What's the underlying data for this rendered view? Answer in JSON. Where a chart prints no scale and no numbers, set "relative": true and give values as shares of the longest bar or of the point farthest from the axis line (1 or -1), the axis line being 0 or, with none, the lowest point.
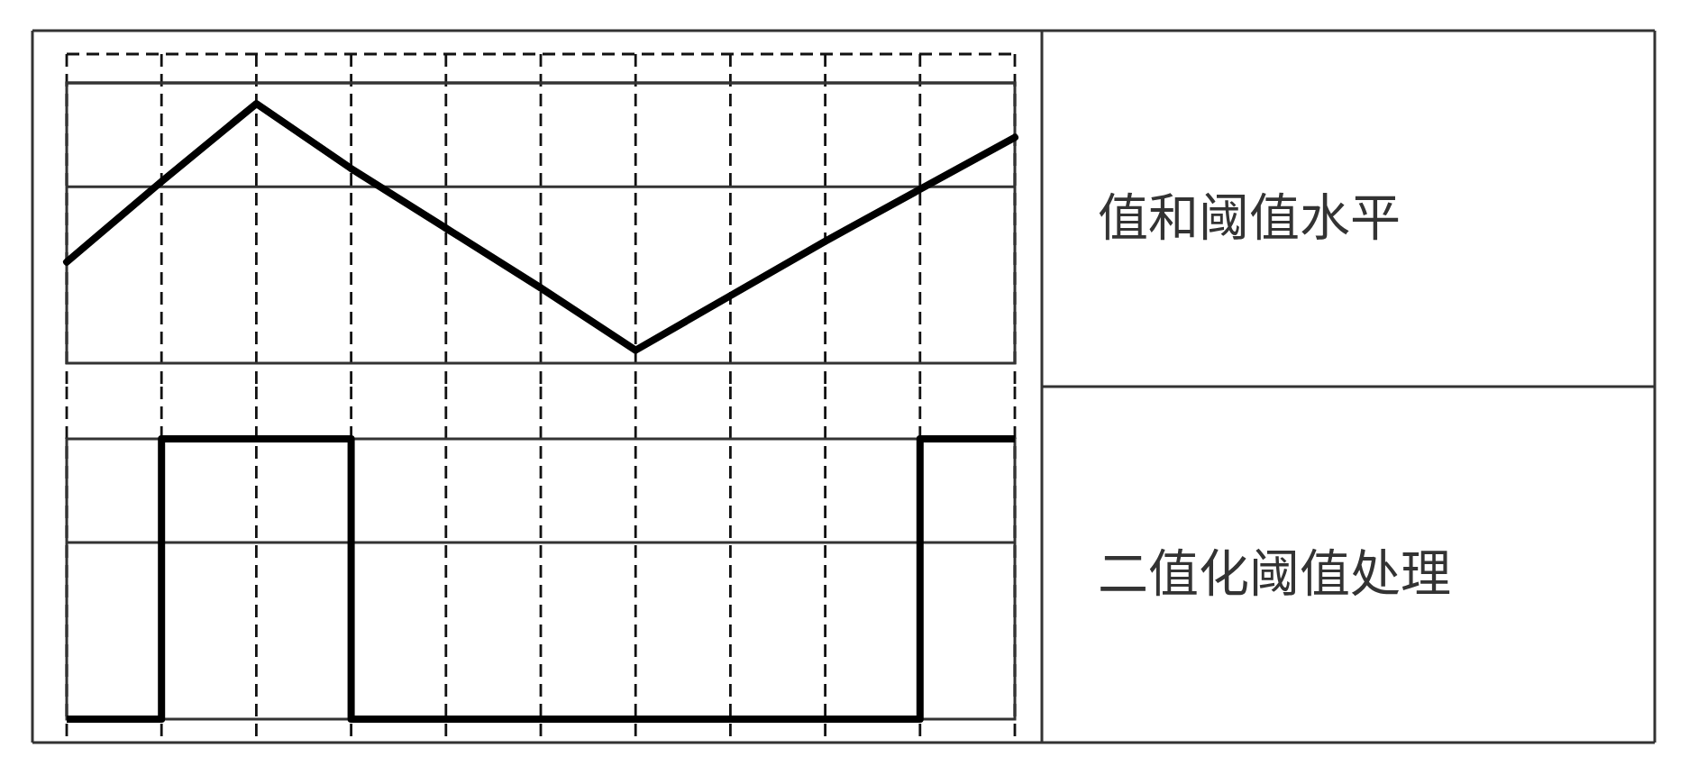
{
  "chart_data": [
    {
      "type": "line",
      "annotations": [
        "值和阈值水平"
      ],
      "relative": true,
      "categories": [
        null,
        null,
        null,
        null,
        null,
        null,
        null,
        null,
        null,
        null,
        null
      ],
      "grid": "x",
      "series": [
        {
          "color": "#000000",
          "values": [
            0.39,
            0.7,
            1,
            0.75,
            0.52,
            0.29,
            0.05,
            0.26,
            0.47,
            0.67,
            0.87
          ]
        }
      ],
      "ref_lines": [
        {
          "axis": "y",
          "value": 0.68
        },
        {
          "axis": "y",
          "value": 1.08
        }
      ]
    },
    {
      "type": "step",
      "annotations": [
        "二值化阈值处理"
      ],
      "relative": true,
      "categories": [
        null,
        null,
        null,
        null,
        null,
        null,
        null,
        null,
        null,
        null,
        null
      ],
      "grid": "x",
      "series": [
        {
          "color": "#000000",
          "values": [
            0,
            1,
            1,
            0,
            0,
            0,
            0,
            0,
            0,
            1,
            1
          ]
        }
      ],
      "ref_lines": [
        {
          "axis": "y",
          "value": 0.63
        }
      ]
    }
  ]
}
